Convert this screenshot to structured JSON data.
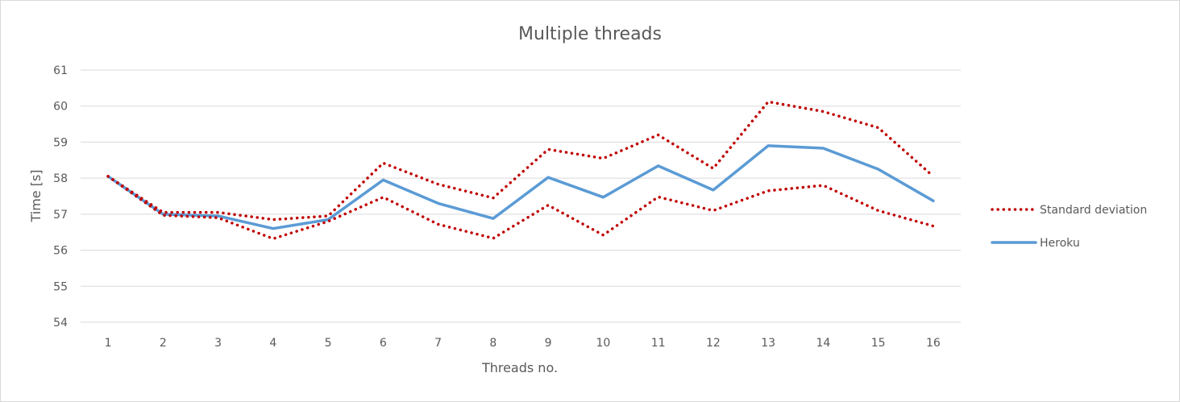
{
  "chart_data": {
    "type": "line",
    "title": "Multiple threads",
    "xlabel": "Threads no.",
    "ylabel": "Time [s]",
    "ylim": [
      54,
      61
    ],
    "yticks": [
      "54",
      "55",
      "56",
      "57",
      "58",
      "59",
      "60",
      "61"
    ],
    "categories": [
      "1",
      "2",
      "3",
      "4",
      "5",
      "6",
      "7",
      "8",
      "9",
      "10",
      "11",
      "12",
      "13",
      "14",
      "15",
      "16"
    ],
    "grid": true,
    "legend_position": "right",
    "series": [
      {
        "name": "Heroku",
        "style": "solid",
        "color": "#5b9bd5",
        "values": [
          58.05,
          57.0,
          56.95,
          56.6,
          56.85,
          57.95,
          57.3,
          56.88,
          58.02,
          57.47,
          58.34,
          57.67,
          58.9,
          58.83,
          58.25,
          57.37
        ]
      },
      {
        "name": "Standard deviation",
        "style": "dotted",
        "color": "#c00000",
        "legend": true,
        "values": [
          58.05,
          57.05,
          57.05,
          56.85,
          56.95,
          58.42,
          57.83,
          57.45,
          58.8,
          58.55,
          59.2,
          58.27,
          60.12,
          59.85,
          59.4,
          58.05
        ]
      },
      {
        "name": "",
        "style": "dotted",
        "color": "#c00000",
        "legend": false,
        "values": [
          58.05,
          56.97,
          56.9,
          56.32,
          56.8,
          57.47,
          56.72,
          56.33,
          57.25,
          56.42,
          57.48,
          57.1,
          57.65,
          57.8,
          57.1,
          56.67
        ]
      }
    ],
    "legend": [
      {
        "label": "Standard deviation",
        "style": "dotted",
        "color": "#c00000"
      },
      {
        "label": "Heroku",
        "style": "solid",
        "color": "#5b9bd5"
      }
    ]
  }
}
